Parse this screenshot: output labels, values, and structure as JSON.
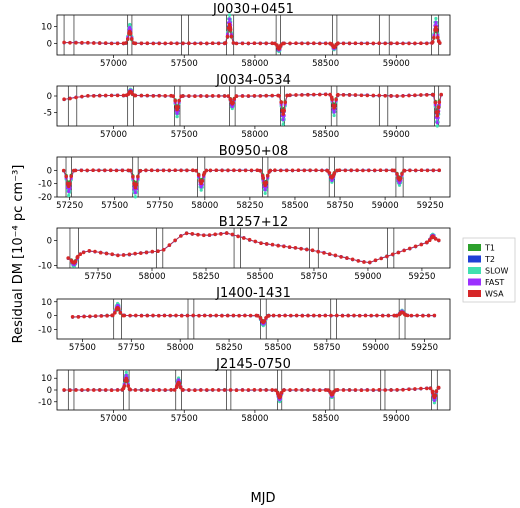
{
  "figure": {
    "ylabel": "Residual DM [10⁻⁴ pc cm⁻³]",
    "xlabel": "MJD"
  },
  "legend": {
    "placement": "right",
    "items": [
      {
        "label": "T1",
        "color": "#2ca02c"
      },
      {
        "label": "T2",
        "color": "#1f3fd6"
      },
      {
        "label": "SLOW",
        "color": "#40e0b0"
      },
      {
        "label": "FAST",
        "color": "#9b30ff"
      },
      {
        "label": "WSA",
        "color": "#d62728"
      }
    ]
  },
  "chart_data": [
    {
      "type": "line",
      "title": "J0030+0451",
      "xlim": [
        56600,
        59380
      ],
      "ylim": [
        -7,
        17
      ],
      "xticks": [
        57000,
        57500,
        58000,
        58500,
        59000
      ],
      "yticks": [
        -10,
        0,
        10
      ],
      "ytick_labels": [
        "",
        "0",
        "10"
      ],
      "vlines": [
        56650,
        56720,
        57100,
        57130,
        57480,
        57530,
        57800,
        57850,
        58150,
        58180,
        58550,
        58580,
        58880,
        58950,
        59250,
        59300
      ],
      "events": [
        {
          "x": 57115,
          "amp": 9
        },
        {
          "x": 57820,
          "amp": 14
        },
        {
          "x": 58170,
          "amp": -4
        },
        {
          "x": 58560,
          "amp": -3
        },
        {
          "x": 59280,
          "amp": 12
        }
      ],
      "baseline": [
        [
          56650,
          0.5
        ],
        [
          57000,
          0
        ],
        [
          57500,
          0
        ],
        [
          58000,
          0
        ],
        [
          58500,
          0
        ],
        [
          59000,
          0
        ],
        [
          59300,
          0
        ]
      ]
    },
    {
      "type": "line",
      "title": "J0034-0534",
      "xlim": [
        56600,
        59380
      ],
      "ylim": [
        -9,
        3
      ],
      "xticks": [
        57000,
        57500,
        58000,
        58500,
        59000
      ],
      "yticks": [
        -5,
        0
      ],
      "ytick_labels": [
        "-5",
        "0"
      ],
      "vlines": [
        56680,
        56740,
        57100,
        57140,
        57430,
        57470,
        57820,
        57860,
        58180,
        58210,
        58540,
        58580,
        58880,
        58940,
        59270,
        59300
      ],
      "events": [
        {
          "x": 57120,
          "amp": 1.5
        },
        {
          "x": 57450,
          "amp": -5
        },
        {
          "x": 57840,
          "amp": -3
        },
        {
          "x": 58200,
          "amp": -7
        },
        {
          "x": 58560,
          "amp": -5
        },
        {
          "x": 59290,
          "amp": -8
        }
      ],
      "baseline": [
        [
          56650,
          -1
        ],
        [
          56800,
          0
        ],
        [
          57000,
          0.2
        ],
        [
          57500,
          0
        ],
        [
          58000,
          0
        ],
        [
          58500,
          0.5
        ],
        [
          59000,
          0
        ],
        [
          59300,
          0.5
        ]
      ]
    },
    {
      "type": "line",
      "title": "B0950+08",
      "xlim": [
        57180,
        59360
      ],
      "ylim": [
        -20,
        10
      ],
      "xticks": [
        57250,
        57500,
        57750,
        58000,
        58250,
        58500,
        58750,
        59000,
        59250
      ],
      "yticks": [
        -20,
        -10,
        0
      ],
      "ytick_labels": [
        "-20",
        "-10",
        "0"
      ],
      "vlines": [
        57230,
        57260,
        57600,
        57630,
        57960,
        58000,
        58320,
        58350,
        58690,
        58720,
        59060,
        59100
      ],
      "events": [
        {
          "x": 57245,
          "amp": -15
        },
        {
          "x": 57615,
          "amp": -16
        },
        {
          "x": 57980,
          "amp": -12
        },
        {
          "x": 58335,
          "amp": -14
        },
        {
          "x": 58705,
          "amp": -7
        },
        {
          "x": 59080,
          "amp": -9
        }
      ],
      "baseline": [
        [
          57250,
          0
        ],
        [
          57500,
          0
        ],
        [
          58000,
          0
        ],
        [
          58500,
          0
        ],
        [
          59000,
          0
        ],
        [
          59300,
          0
        ]
      ]
    },
    {
      "type": "line",
      "title": "B1257+12",
      "xlim": [
        57560,
        59380
      ],
      "ylim": [
        -11,
        5
      ],
      "xticks": [
        57750,
        58000,
        58250,
        58500,
        58750,
        59000,
        59250
      ],
      "yticks": [
        -10,
        0
      ],
      "ytick_labels": [
        "-10",
        "0"
      ],
      "vlines": [
        57620,
        57660,
        58020,
        58050,
        58380,
        58410,
        58730,
        58770,
        59090,
        59120
      ],
      "events": [
        {
          "x": 57640,
          "amp": -3
        },
        {
          "x": 59300,
          "amp": 2
        }
      ],
      "baseline": [
        [
          57630,
          -7
        ],
        [
          57700,
          -4
        ],
        [
          57850,
          -6
        ],
        [
          58050,
          -4
        ],
        [
          58150,
          3
        ],
        [
          58250,
          2
        ],
        [
          58350,
          3
        ],
        [
          58500,
          -1
        ],
        [
          58750,
          -4
        ],
        [
          59000,
          -9
        ],
        [
          59200,
          -3
        ],
        [
          59300,
          0
        ]
      ]
    },
    {
      "type": "line",
      "title": "J1400-1431",
      "xlim": [
        57370,
        59380
      ],
      "ylim": [
        -17,
        12
      ],
      "xticks": [
        57500,
        57750,
        58000,
        58250,
        58500,
        58750,
        59000,
        59250
      ],
      "yticks": [
        -10,
        0,
        10
      ],
      "ytick_labels": [
        "-10",
        "0",
        "10"
      ],
      "vlines": [
        57660,
        57700,
        58040,
        58070,
        58410,
        58440,
        58770,
        58800,
        59120,
        59150
      ],
      "events": [
        {
          "x": 57680,
          "amp": 7
        },
        {
          "x": 58425,
          "amp": -6
        },
        {
          "x": 59135,
          "amp": 3
        }
      ],
      "baseline": [
        [
          57450,
          -1
        ],
        [
          57650,
          0
        ],
        [
          57900,
          0
        ],
        [
          58200,
          0
        ],
        [
          58500,
          0
        ],
        [
          58800,
          0
        ],
        [
          59050,
          0
        ],
        [
          59300,
          0
        ]
      ]
    },
    {
      "type": "line",
      "title": "J2145-0750",
      "xlim": [
        56600,
        59380
      ],
      "ylim": [
        -17,
        17
      ],
      "xticks": [
        57000,
        57500,
        58000,
        58500,
        59000
      ],
      "yticks": [
        -10,
        0,
        10
      ],
      "ytick_labels": [
        "-10",
        "0",
        "10"
      ],
      "vlines": [
        56680,
        56720,
        57070,
        57110,
        57440,
        57480,
        57800,
        57830,
        58160,
        58190,
        58530,
        58560,
        58890,
        58920,
        59250,
        59290
      ],
      "events": [
        {
          "x": 57090,
          "amp": 12
        },
        {
          "x": 57460,
          "amp": 8
        },
        {
          "x": 58175,
          "amp": -8
        },
        {
          "x": 58545,
          "amp": -5
        },
        {
          "x": 59270,
          "amp": -10
        }
      ],
      "baseline": [
        [
          56650,
          0
        ],
        [
          57000,
          0
        ],
        [
          57500,
          0
        ],
        [
          58000,
          0
        ],
        [
          58500,
          0
        ],
        [
          59000,
          0
        ],
        [
          59300,
          2
        ]
      ]
    }
  ]
}
